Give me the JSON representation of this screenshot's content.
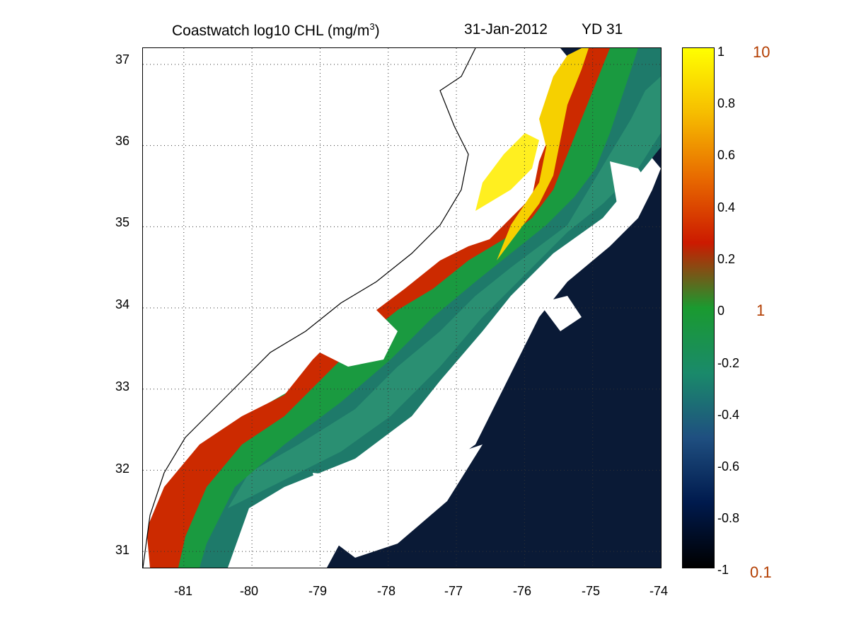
{
  "title": {
    "main": "Coastwatch  log10  CHL (mg/m",
    "main_sup": "3",
    "main_close": ")",
    "date": "31-Jan-2012",
    "yd": "YD 31"
  },
  "map": {
    "lon_ticks": [
      "-81",
      "-80",
      "-79",
      "-78",
      "-77",
      "-76",
      "-75",
      "-74"
    ],
    "lat_ticks": [
      "37",
      "36",
      "35",
      "34",
      "33",
      "32",
      "31"
    ],
    "lon_range": [
      -81.6,
      -74.0
    ],
    "lat_range": [
      30.8,
      37.2
    ],
    "grid": "dotted"
  },
  "colorbar": {
    "ticks": [
      "1",
      "0.8",
      "0.6",
      "0.4",
      "0.2",
      "0",
      "-0.2",
      "-0.4",
      "-0.6",
      "-0.8",
      "-1"
    ],
    "range": [
      -1,
      1
    ],
    "chl_labels": [
      "10",
      "1",
      "0.1"
    ],
    "colors": [
      "#000000",
      "#001a4d",
      "#1f4f80",
      "#1a8a6a",
      "#1a9a30",
      "#cc1a00",
      "#e86a00",
      "#f6bd00",
      "#ffff00"
    ]
  }
}
